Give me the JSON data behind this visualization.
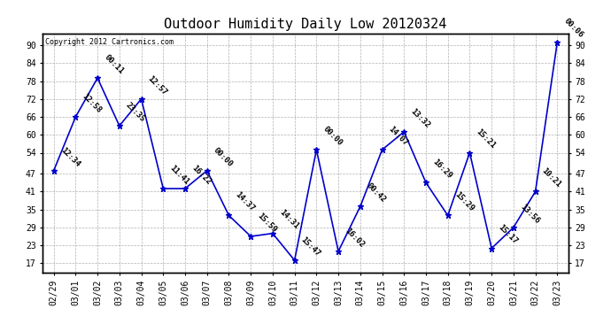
{
  "title": "Outdoor Humidity Daily Low 20120324",
  "copyright": "Copyright 2012 Cartronics.com",
  "dates": [
    "02/29",
    "03/01",
    "03/02",
    "03/03",
    "03/04",
    "03/05",
    "03/06",
    "03/07",
    "03/08",
    "03/09",
    "03/10",
    "03/11",
    "03/12",
    "03/13",
    "03/14",
    "03/15",
    "03/16",
    "03/17",
    "03/18",
    "03/19",
    "03/20",
    "03/21",
    "03/22",
    "03/23"
  ],
  "values": [
    48,
    66,
    79,
    63,
    72,
    42,
    42,
    48,
    33,
    26,
    27,
    18,
    55,
    21,
    36,
    55,
    61,
    44,
    33,
    54,
    22,
    29,
    41,
    91
  ],
  "times": [
    "12:34",
    "12:58",
    "00:11",
    "23:35",
    "12:57",
    "11:41",
    "16:22",
    "00:00",
    "14:37",
    "15:59",
    "14:31",
    "15:47",
    "00:00",
    "16:02",
    "00:42",
    "14:07",
    "13:32",
    "16:29",
    "15:29",
    "15:21",
    "15:17",
    "13:56",
    "10:21",
    "00:06"
  ],
  "line_color": "#0000cc",
  "marker": "*",
  "marker_size": 5,
  "bg_color": "#ffffff",
  "grid_color": "#b0b0b0",
  "ylim": [
    14,
    94
  ],
  "yticks": [
    17,
    23,
    29,
    35,
    41,
    47,
    54,
    60,
    66,
    72,
    78,
    84,
    90
  ],
  "title_fontsize": 11,
  "label_fontsize": 7,
  "annotation_fontsize": 6.5,
  "copyright_fontsize": 6
}
